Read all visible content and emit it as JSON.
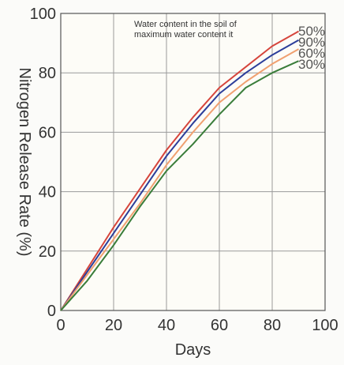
{
  "chart_data": {
    "type": "line",
    "xlabel": "Days",
    "ylabel": "Nitrogen Release Rate (%)",
    "annotation": [
      "Water content in the soil of",
      "maximum water content it"
    ],
    "xlim": [
      0,
      100
    ],
    "ylim": [
      0,
      100
    ],
    "xticks": [
      0,
      20,
      40,
      60,
      80,
      100
    ],
    "yticks": [
      0,
      20,
      40,
      60,
      80,
      100
    ],
    "grid": true,
    "legend_position": "top-right",
    "series": [
      {
        "name": "50%",
        "color": "#d6453c",
        "points": [
          [
            0,
            0
          ],
          [
            10,
            14
          ],
          [
            20,
            28
          ],
          [
            30,
            41
          ],
          [
            40,
            54
          ],
          [
            50,
            65
          ],
          [
            60,
            75
          ],
          [
            70,
            82
          ],
          [
            80,
            89
          ],
          [
            90,
            94
          ]
        ]
      },
      {
        "name": "90%",
        "color": "#2c3e9a",
        "points": [
          [
            0,
            0
          ],
          [
            10,
            13
          ],
          [
            20,
            26
          ],
          [
            30,
            39
          ],
          [
            40,
            52
          ],
          [
            50,
            63
          ],
          [
            60,
            73
          ],
          [
            70,
            80
          ],
          [
            80,
            86
          ],
          [
            90,
            91
          ]
        ]
      },
      {
        "name": "60%",
        "color": "#f0a070",
        "points": [
          [
            0,
            0
          ],
          [
            10,
            12
          ],
          [
            20,
            24
          ],
          [
            30,
            36
          ],
          [
            40,
            49
          ],
          [
            50,
            60
          ],
          [
            60,
            70
          ],
          [
            70,
            77
          ],
          [
            80,
            83
          ],
          [
            90,
            88
          ]
        ]
      },
      {
        "name": "30%",
        "color": "#3a7d3a",
        "points": [
          [
            0,
            0
          ],
          [
            10,
            10
          ],
          [
            20,
            22
          ],
          [
            30,
            35
          ],
          [
            40,
            47
          ],
          [
            50,
            56
          ],
          [
            60,
            66
          ],
          [
            70,
            75
          ],
          [
            80,
            80
          ],
          [
            90,
            84
          ]
        ]
      }
    ]
  }
}
